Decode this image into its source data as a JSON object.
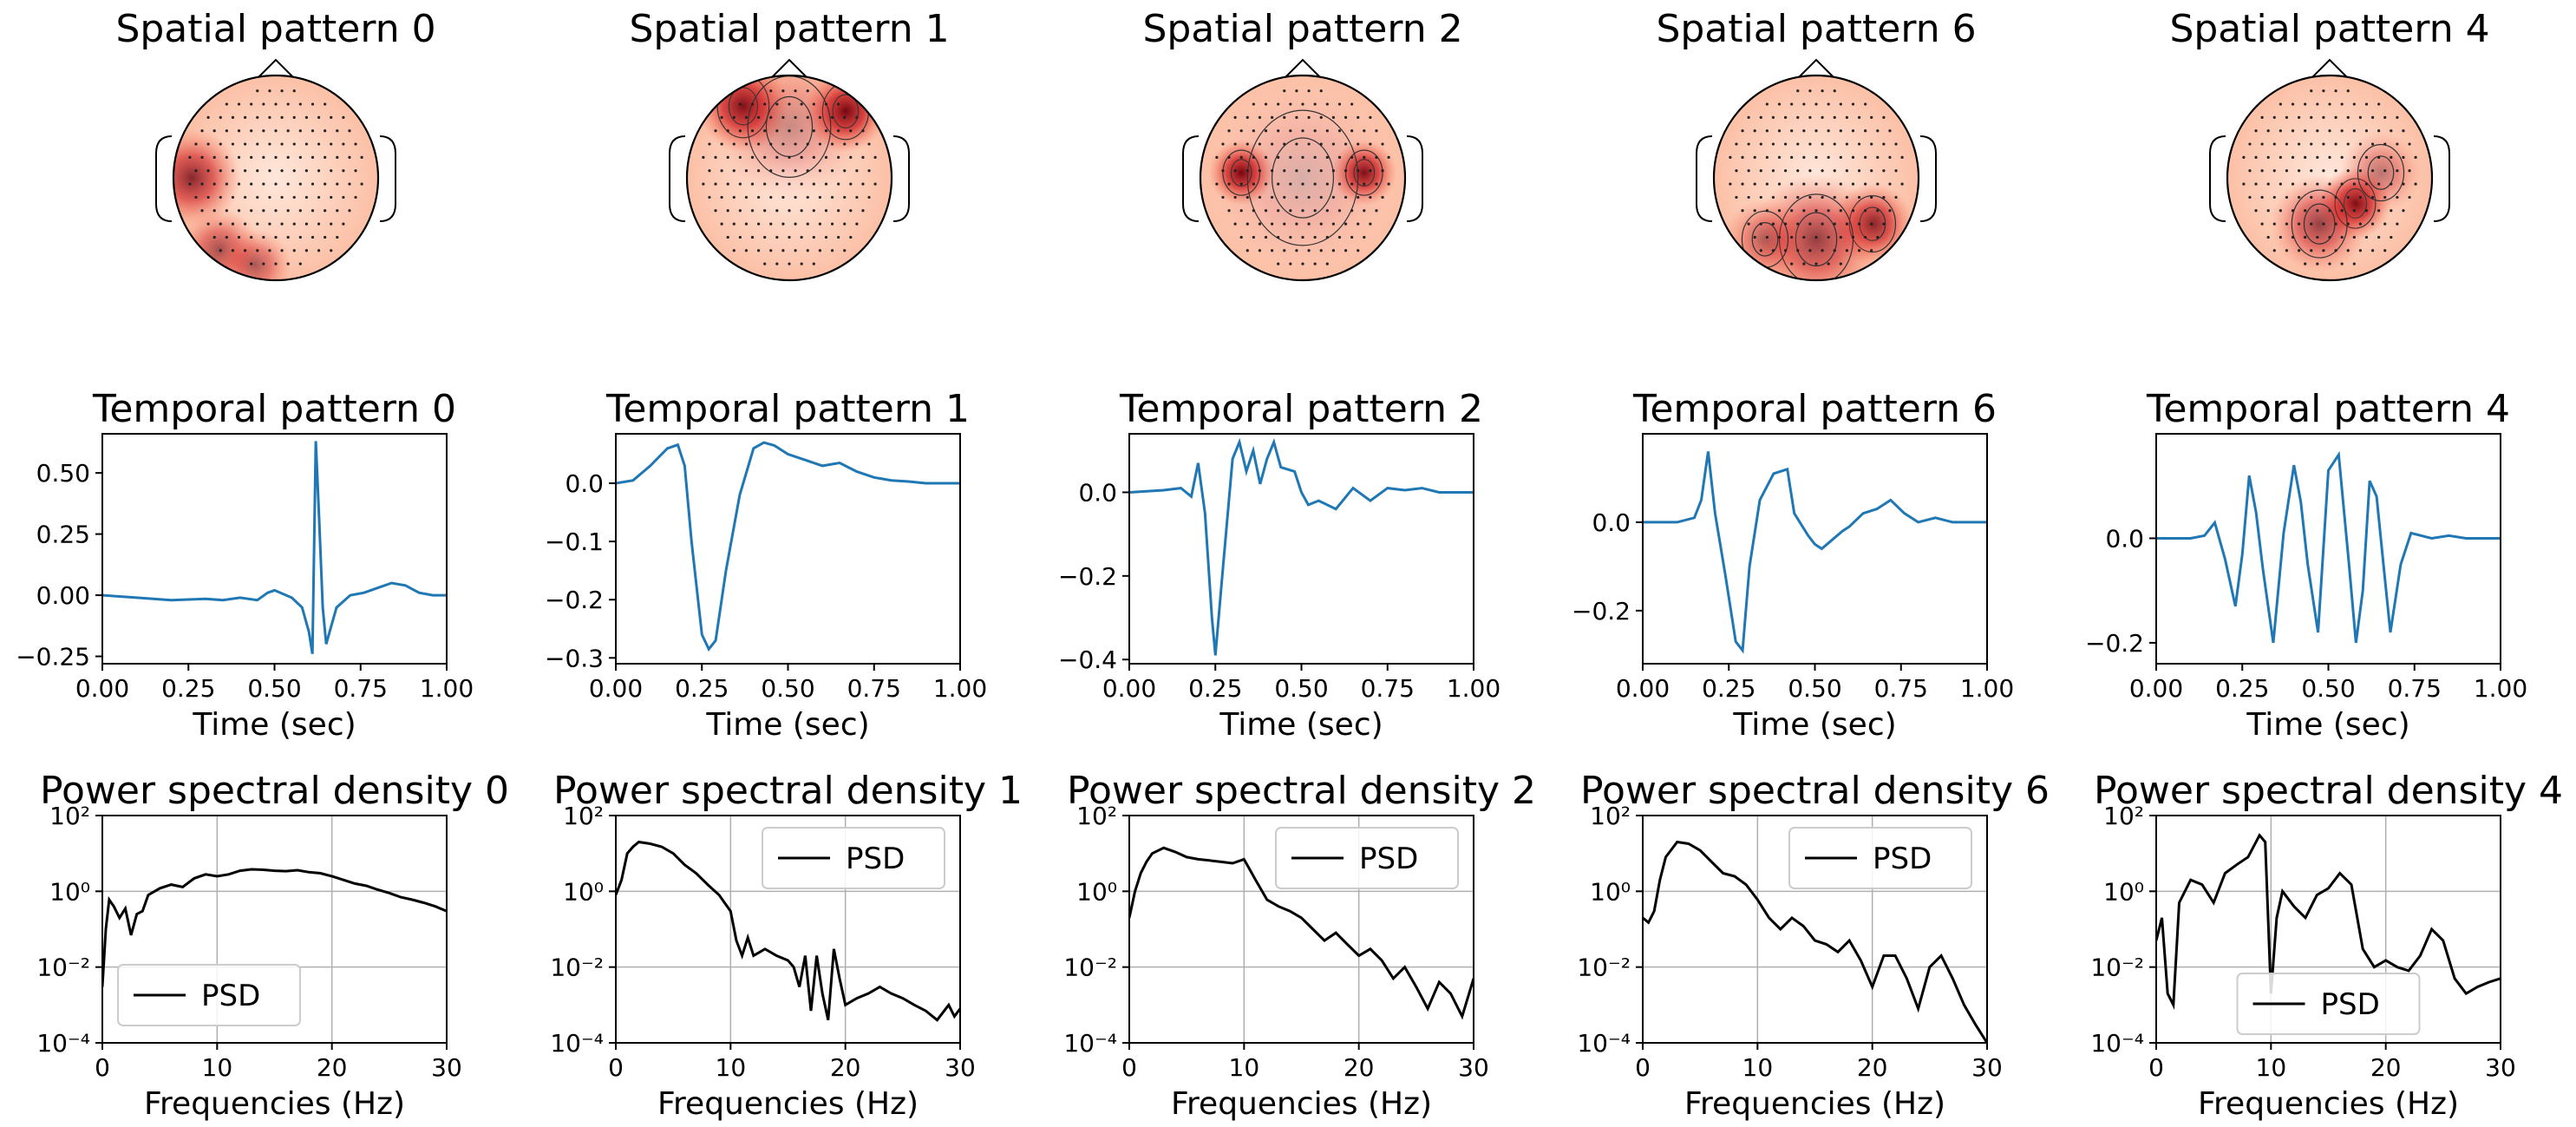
{
  "chart_data": [
    {
      "type": "topomap",
      "title": "Spatial pattern 0",
      "hotspots": [
        [
          -0.82,
          0.0,
          0.3,
          0.8
        ],
        [
          -0.55,
          0.7,
          0.25,
          0.6
        ],
        [
          -0.2,
          0.85,
          0.22,
          0.55
        ]
      ]
    },
    {
      "type": "topomap",
      "title": "Spatial pattern 1",
      "hotspots": [
        [
          -0.45,
          -0.7,
          0.28,
          0.95
        ],
        [
          0.55,
          -0.65,
          0.25,
          1.0
        ],
        [
          0.0,
          -0.5,
          0.45,
          0.35
        ]
      ],
      "contours": true
    },
    {
      "type": "topomap",
      "title": "Spatial pattern 2",
      "hotspots": [
        [
          -0.6,
          -0.05,
          0.2,
          1.0
        ],
        [
          0.6,
          -0.05,
          0.2,
          0.95
        ],
        [
          0.0,
          0.0,
          0.6,
          0.25
        ]
      ],
      "contours": true
    },
    {
      "type": "topomap",
      "title": "Spatial pattern 6",
      "hotspots": [
        [
          0.55,
          0.45,
          0.25,
          0.85
        ],
        [
          0.0,
          0.6,
          0.4,
          0.7
        ],
        [
          -0.5,
          0.6,
          0.25,
          0.5
        ]
      ],
      "contours": true
    },
    {
      "type": "topomap",
      "title": "Spatial pattern 4",
      "hotspots": [
        [
          0.25,
          0.25,
          0.22,
          1.0
        ],
        [
          -0.1,
          0.45,
          0.3,
          0.7
        ],
        [
          0.5,
          -0.05,
          0.25,
          0.45
        ]
      ],
      "contours": true
    },
    {
      "type": "line",
      "title": "Temporal pattern 0",
      "xlabel": "Time (sec)",
      "xlim": [
        0,
        1
      ],
      "ylim": [
        -0.28,
        0.66
      ],
      "xticks": [
        0,
        0.25,
        0.5,
        0.75,
        1.0
      ],
      "xticklabels": [
        "0.00",
        "0.25",
        "0.50",
        "0.75",
        "1.00"
      ],
      "yticks": [
        -0.25,
        0,
        0.25,
        0.5
      ],
      "yticklabels": [
        "−0.25",
        "0.00",
        "0.25",
        "0.50"
      ],
      "x": [
        0,
        0.1,
        0.2,
        0.3,
        0.35,
        0.4,
        0.45,
        0.48,
        0.5,
        0.55,
        0.58,
        0.6,
        0.61,
        0.62,
        0.63,
        0.64,
        0.65,
        0.66,
        0.68,
        0.72,
        0.76,
        0.8,
        0.84,
        0.88,
        0.92,
        0.96,
        1.0
      ],
      "y": [
        0,
        -0.01,
        -0.02,
        -0.015,
        -0.02,
        -0.01,
        -0.02,
        0.01,
        0.02,
        -0.01,
        -0.05,
        -0.15,
        -0.24,
        0.63,
        0.3,
        -0.05,
        -0.2,
        -0.15,
        -0.05,
        0,
        0.01,
        0.03,
        0.05,
        0.04,
        0.01,
        0,
        0
      ]
    },
    {
      "type": "line",
      "title": "Temporal pattern 1",
      "xlabel": "Time (sec)",
      "xlim": [
        0,
        1
      ],
      "ylim": [
        -0.31,
        0.085
      ],
      "xticks": [
        0,
        0.25,
        0.5,
        0.75,
        1.0
      ],
      "xticklabels": [
        "0.00",
        "0.25",
        "0.50",
        "0.75",
        "1.00"
      ],
      "yticks": [
        -0.3,
        -0.2,
        -0.1,
        0
      ],
      "yticklabels": [
        "−0.3",
        "−0.2",
        "−0.1",
        "0.0"
      ],
      "x": [
        0,
        0.05,
        0.1,
        0.15,
        0.18,
        0.2,
        0.22,
        0.25,
        0.27,
        0.29,
        0.32,
        0.36,
        0.4,
        0.43,
        0.46,
        0.5,
        0.55,
        0.6,
        0.65,
        0.7,
        0.75,
        0.8,
        0.85,
        0.9,
        0.95,
        1.0
      ],
      "y": [
        0,
        0.005,
        0.03,
        0.06,
        0.066,
        0.03,
        -0.1,
        -0.26,
        -0.285,
        -0.27,
        -0.15,
        -0.02,
        0.06,
        0.07,
        0.065,
        0.05,
        0.04,
        0.03,
        0.035,
        0.02,
        0.01,
        0.005,
        0.003,
        0,
        0,
        0
      ]
    },
    {
      "type": "line",
      "title": "Temporal pattern 2",
      "xlabel": "Time (sec)",
      "xlim": [
        0,
        1
      ],
      "ylim": [
        -0.41,
        0.14
      ],
      "xticks": [
        0,
        0.25,
        0.5,
        0.75,
        1.0
      ],
      "xticklabels": [
        "0.00",
        "0.25",
        "0.50",
        "0.75",
        "1.00"
      ],
      "yticks": [
        -0.4,
        -0.2,
        0
      ],
      "yticklabels": [
        "−0.4",
        "−0.2",
        "0.0"
      ],
      "x": [
        0,
        0.1,
        0.15,
        0.18,
        0.2,
        0.22,
        0.24,
        0.25,
        0.27,
        0.3,
        0.32,
        0.34,
        0.36,
        0.38,
        0.4,
        0.42,
        0.44,
        0.48,
        0.5,
        0.52,
        0.55,
        0.6,
        0.65,
        0.7,
        0.75,
        0.8,
        0.85,
        0.9,
        0.95,
        1.0
      ],
      "y": [
        0,
        0.005,
        0.01,
        -0.01,
        0.07,
        -0.05,
        -0.3,
        -0.39,
        -0.2,
        0.08,
        0.12,
        0.05,
        0.1,
        0.02,
        0.08,
        0.12,
        0.06,
        0.05,
        0,
        -0.03,
        -0.02,
        -0.04,
        0.01,
        -0.02,
        0.01,
        0.005,
        0.01,
        0,
        0,
        0
      ]
    },
    {
      "type": "line",
      "title": "Temporal pattern 6",
      "xlabel": "Time (sec)",
      "xlim": [
        0,
        1
      ],
      "ylim": [
        -0.32,
        0.2
      ],
      "xticks": [
        0,
        0.25,
        0.5,
        0.75,
        1.0
      ],
      "xticklabels": [
        "0.00",
        "0.25",
        "0.50",
        "0.75",
        "1.00"
      ],
      "yticks": [
        -0.2,
        0
      ],
      "yticklabels": [
        "−0.2",
        "0.0"
      ],
      "x": [
        0,
        0.1,
        0.15,
        0.17,
        0.19,
        0.21,
        0.24,
        0.27,
        0.29,
        0.31,
        0.34,
        0.38,
        0.42,
        0.44,
        0.48,
        0.5,
        0.52,
        0.55,
        0.58,
        0.6,
        0.64,
        0.68,
        0.72,
        0.76,
        0.8,
        0.85,
        0.9,
        0.95,
        1.0
      ],
      "y": [
        0,
        0,
        0.01,
        0.05,
        0.16,
        0.02,
        -0.12,
        -0.27,
        -0.29,
        -0.1,
        0.05,
        0.11,
        0.12,
        0.02,
        -0.03,
        -0.05,
        -0.06,
        -0.04,
        -0.02,
        -0.01,
        0.02,
        0.03,
        0.05,
        0.02,
        0,
        0.01,
        0,
        0,
        0
      ]
    },
    {
      "type": "line",
      "title": "Temporal pattern 4",
      "xlabel": "Time (sec)",
      "xlim": [
        0,
        1
      ],
      "ylim": [
        -0.24,
        0.2
      ],
      "xticks": [
        0,
        0.25,
        0.5,
        0.75,
        1.0
      ],
      "xticklabels": [
        "0.00",
        "0.25",
        "0.50",
        "0.75",
        "1.00"
      ],
      "yticks": [
        -0.2,
        0
      ],
      "yticklabels": [
        "−0.2",
        "0.0"
      ],
      "x": [
        0,
        0.1,
        0.14,
        0.17,
        0.2,
        0.23,
        0.25,
        0.27,
        0.29,
        0.31,
        0.34,
        0.37,
        0.4,
        0.42,
        0.44,
        0.47,
        0.5,
        0.53,
        0.56,
        0.58,
        0.6,
        0.62,
        0.64,
        0.66,
        0.68,
        0.71,
        0.74,
        0.8,
        0.85,
        0.9,
        0.95,
        1.0
      ],
      "y": [
        0,
        0,
        0.005,
        0.03,
        -0.04,
        -0.13,
        -0.03,
        0.12,
        0.05,
        -0.06,
        -0.2,
        0.01,
        0.14,
        0.07,
        -0.05,
        -0.18,
        0.13,
        0.16,
        -0.05,
        -0.2,
        -0.1,
        0.11,
        0.08,
        -0.05,
        -0.18,
        -0.05,
        0.01,
        0,
        0.005,
        0,
        0,
        0
      ]
    },
    {
      "type": "line",
      "yscale": "log",
      "title": "Power spectral density 0",
      "xlabel": "Frequencies (Hz)",
      "xlim": [
        0,
        30
      ],
      "ylim": [
        0.0001,
        100
      ],
      "xticks": [
        0,
        10,
        20,
        30
      ],
      "yticks": [
        0.0001,
        0.01,
        1,
        100
      ],
      "yticklabels": [
        "10⁻⁴",
        "10⁻²",
        "10⁰",
        "10²"
      ],
      "legend": "PSD",
      "legend_loc": "lower-left",
      "x": [
        0,
        0.3,
        0.6,
        1,
        1.5,
        2,
        2.5,
        3,
        3.5,
        4,
        5,
        6,
        7,
        8,
        9,
        10,
        11,
        12,
        13,
        14,
        15,
        16,
        17,
        18,
        19,
        20,
        21,
        22,
        23,
        24,
        25,
        26,
        27,
        28,
        29,
        30
      ],
      "y": [
        0.003,
        0.1,
        0.6,
        0.4,
        0.2,
        0.35,
        0.07,
        0.25,
        0.3,
        0.8,
        1.2,
        1.5,
        1.3,
        2.2,
        2.8,
        2.5,
        2.8,
        3.5,
        3.8,
        3.7,
        3.5,
        3.4,
        3.6,
        3.2,
        3.0,
        2.5,
        2.0,
        1.6,
        1.4,
        1.1,
        0.9,
        0.7,
        0.6,
        0.5,
        0.4,
        0.3
      ]
    },
    {
      "type": "line",
      "yscale": "log",
      "title": "Power spectral density 1",
      "xlabel": "Frequencies (Hz)",
      "xlim": [
        0,
        30
      ],
      "ylim": [
        0.0001,
        100
      ],
      "xticks": [
        0,
        10,
        20,
        30
      ],
      "yticks": [
        0.0001,
        0.01,
        1,
        100
      ],
      "yticklabels": [
        "10⁻⁴",
        "10⁻²",
        "10⁰",
        "10²"
      ],
      "legend": "PSD",
      "legend_loc": "upper-right",
      "x": [
        0,
        0.5,
        1,
        1.5,
        2,
        3,
        4,
        5,
        6,
        7,
        8,
        9,
        10,
        10.5,
        11,
        11.5,
        12,
        13,
        14,
        15,
        15.5,
        16,
        16.5,
        17,
        17.5,
        18,
        18.5,
        19,
        19.5,
        20,
        21,
        22,
        23,
        24,
        25,
        26,
        27,
        28,
        29,
        29.5,
        30
      ],
      "y": [
        0.8,
        2,
        10,
        15,
        20,
        18,
        15,
        10,
        5,
        3,
        1.5,
        0.8,
        0.3,
        0.05,
        0.02,
        0.06,
        0.02,
        0.03,
        0.02,
        0.015,
        0.01,
        0.003,
        0.02,
        0.0007,
        0.02,
        0.002,
        0.0004,
        0.03,
        0.005,
        0.001,
        0.0015,
        0.002,
        0.003,
        0.002,
        0.0015,
        0.001,
        0.0007,
        0.0004,
        0.001,
        0.0005,
        0.0008
      ]
    },
    {
      "type": "line",
      "yscale": "log",
      "title": "Power spectral density 2",
      "xlabel": "Frequencies (Hz)",
      "xlim": [
        0,
        30
      ],
      "ylim": [
        0.0001,
        100
      ],
      "xticks": [
        0,
        10,
        20,
        30
      ],
      "yticks": [
        0.0001,
        0.01,
        1,
        100
      ],
      "yticklabels": [
        "10⁻⁴",
        "10⁻²",
        "10⁰",
        "10²"
      ],
      "legend": "PSD",
      "legend_loc": "upper-right",
      "x": [
        0,
        0.5,
        1,
        1.5,
        2,
        3,
        4,
        5,
        6,
        7,
        8,
        9,
        10,
        11,
        12,
        13,
        14,
        15,
        16,
        17,
        18,
        19,
        20,
        21,
        22,
        23,
        24,
        25,
        26,
        27,
        28,
        29,
        30
      ],
      "y": [
        0.2,
        1,
        3,
        6,
        10,
        14,
        11,
        8,
        7,
        6.5,
        6,
        5.5,
        7,
        2,
        0.6,
        0.4,
        0.3,
        0.2,
        0.1,
        0.05,
        0.08,
        0.04,
        0.02,
        0.03,
        0.015,
        0.005,
        0.01,
        0.003,
        0.0008,
        0.004,
        0.002,
        0.0005,
        0.005
      ]
    },
    {
      "type": "line",
      "yscale": "log",
      "title": "Power spectral density 6",
      "xlabel": "Frequencies (Hz)",
      "xlim": [
        0,
        30
      ],
      "ylim": [
        0.0001,
        100
      ],
      "xticks": [
        0,
        10,
        20,
        30
      ],
      "yticks": [
        0.0001,
        0.01,
        1,
        100
      ],
      "yticklabels": [
        "10⁻⁴",
        "10⁻²",
        "10⁰",
        "10²"
      ],
      "legend": "PSD",
      "legend_loc": "upper-right",
      "x": [
        0,
        0.5,
        1,
        1.5,
        2,
        3,
        4,
        5,
        6,
        7,
        8,
        9,
        10,
        11,
        12,
        13,
        14,
        15,
        16,
        17,
        18,
        19,
        20,
        21,
        22,
        23,
        24,
        25,
        26,
        27,
        28,
        29,
        30
      ],
      "y": [
        0.2,
        0.15,
        0.3,
        2,
        8,
        20,
        18,
        12,
        6,
        3,
        2.5,
        1.5,
        0.6,
        0.2,
        0.1,
        0.2,
        0.12,
        0.05,
        0.04,
        0.025,
        0.05,
        0.015,
        0.003,
        0.02,
        0.02,
        0.005,
        0.0008,
        0.01,
        0.02,
        0.005,
        0.001,
        0.0003,
        0.0001
      ]
    },
    {
      "type": "line",
      "yscale": "log",
      "title": "Power spectral density 4",
      "xlabel": "Frequencies (Hz)",
      "xlim": [
        0,
        30
      ],
      "ylim": [
        0.0001,
        100
      ],
      "xticks": [
        0,
        10,
        20,
        30
      ],
      "yticks": [
        0.0001,
        0.01,
        1,
        100
      ],
      "yticklabels": [
        "10⁻⁴",
        "10⁻²",
        "10⁰",
        "10²"
      ],
      "legend": "PSD",
      "legend_loc": "lower-center",
      "x": [
        0,
        0.5,
        1,
        1.5,
        2,
        3,
        4,
        5,
        6,
        7,
        8,
        9,
        9.5,
        10,
        10.5,
        11,
        12,
        13,
        14,
        15,
        16,
        17,
        18,
        19,
        20,
        21,
        22,
        23,
        24,
        25,
        26,
        27,
        28,
        29,
        30
      ],
      "y": [
        0.05,
        0.2,
        0.002,
        0.001,
        0.5,
        2,
        1.5,
        0.5,
        3,
        5,
        8,
        30,
        20,
        0.002,
        0.2,
        1,
        0.4,
        0.2,
        0.8,
        1.2,
        3,
        1.5,
        0.03,
        0.01,
        0.015,
        0.01,
        0.008,
        0.02,
        0.1,
        0.05,
        0.005,
        0.002,
        0.003,
        0.004,
        0.005
      ]
    }
  ]
}
